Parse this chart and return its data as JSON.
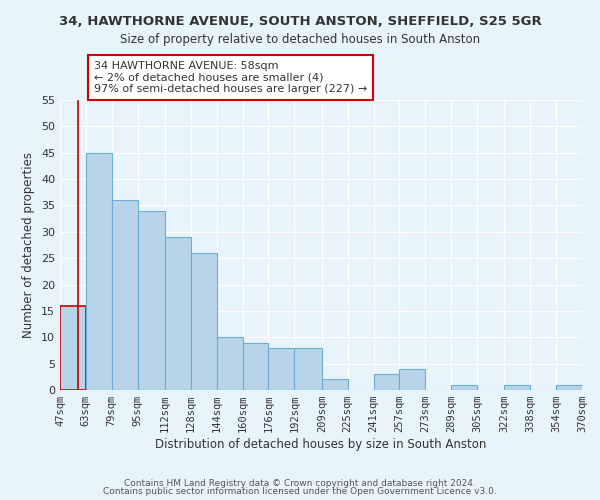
{
  "title": "34, HAWTHORNE AVENUE, SOUTH ANSTON, SHEFFIELD, S25 5GR",
  "subtitle": "Size of property relative to detached houses in South Anston",
  "xlabel": "Distribution of detached houses by size in South Anston",
  "ylabel": "Number of detached properties",
  "footer1": "Contains HM Land Registry data © Crown copyright and database right 2024.",
  "footer2": "Contains public sector information licensed under the Open Government Licence v3.0.",
  "annotation_line1": "34 HAWTHORNE AVENUE: 58sqm",
  "annotation_line2": "← 2% of detached houses are smaller (4)",
  "annotation_line3": "97% of semi-detached houses are larger (227) →",
  "bar_edges": [
    47,
    63,
    79,
    95,
    112,
    128,
    144,
    160,
    176,
    192,
    209,
    225,
    241,
    257,
    273,
    289,
    305,
    322,
    338,
    354,
    370
  ],
  "bar_heights": [
    16,
    45,
    36,
    34,
    29,
    26,
    10,
    9,
    8,
    8,
    2,
    0,
    3,
    4,
    0,
    1,
    0,
    1,
    0,
    1
  ],
  "tick_labels": [
    "47sqm",
    "63sqm",
    "79sqm",
    "95sqm",
    "112sqm",
    "128sqm",
    "144sqm",
    "160sqm",
    "176sqm",
    "192sqm",
    "209sqm",
    "225sqm",
    "241sqm",
    "257sqm",
    "273sqm",
    "289sqm",
    "305sqm",
    "322sqm",
    "338sqm",
    "354sqm",
    "370sqm"
  ],
  "bar_color": "#b8d4e8",
  "bar_edge_color": "#6aadd5",
  "highlight_edge_color": "#cc0000",
  "highlight_bar_index": 0,
  "vline_x": 58,
  "ylim": [
    0,
    55
  ],
  "yticks": [
    0,
    5,
    10,
    15,
    20,
    25,
    30,
    35,
    40,
    45,
    50,
    55
  ],
  "annotation_box_edge_color": "#cc0000",
  "annotation_box_face_color": "#ffffff",
  "bg_color": "#e8f4fc",
  "grid_color": "#ffffff",
  "title_fontsize": 9.5,
  "subtitle_fontsize": 8.5,
  "axis_label_fontsize": 8.5,
  "tick_fontsize": 7.5,
  "annotation_fontsize": 8.0,
  "footer_fontsize": 6.5
}
